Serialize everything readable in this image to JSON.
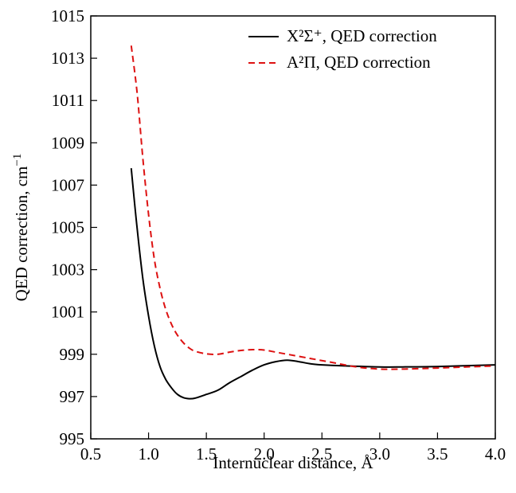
{
  "chart_data": {
    "type": "line",
    "title": "",
    "xlabel": "Internuclear distance, Å",
    "ylabel": "QED correction, cm",
    "ylabel_sup": "−1",
    "xlim": [
      0.5,
      4.0
    ],
    "ylim": [
      995,
      1015
    ],
    "x_ticks": [
      0.5,
      1.0,
      1.5,
      2.0,
      2.5,
      3.0,
      3.5,
      4.0
    ],
    "x_tick_labels": [
      "0.5",
      "1.0",
      "1.5",
      "2.0",
      "2.5",
      "3.0",
      "3.5",
      "4.0"
    ],
    "y_ticks": [
      995,
      997,
      999,
      1001,
      1003,
      1005,
      1007,
      1009,
      1011,
      1013,
      1015
    ],
    "y_tick_labels": [
      "995",
      "997",
      "999",
      "1001",
      "1003",
      "1005",
      "1007",
      "1009",
      "1011",
      "1013",
      "1015"
    ],
    "grid": false,
    "legend_position": "top-right",
    "series": [
      {
        "name": "X²Σ⁺, QED correction",
        "color": "#000000",
        "style": "solid",
        "points": [
          [
            0.85,
            1007.8
          ],
          [
            0.9,
            1005.0
          ],
          [
            0.95,
            1002.6
          ],
          [
            1.0,
            1000.8
          ],
          [
            1.05,
            999.4
          ],
          [
            1.1,
            998.4
          ],
          [
            1.15,
            997.8
          ],
          [
            1.2,
            997.4
          ],
          [
            1.25,
            997.1
          ],
          [
            1.3,
            996.95
          ],
          [
            1.35,
            996.9
          ],
          [
            1.4,
            996.92
          ],
          [
            1.5,
            997.1
          ],
          [
            1.6,
            997.3
          ],
          [
            1.7,
            997.65
          ],
          [
            1.8,
            997.95
          ],
          [
            1.9,
            998.25
          ],
          [
            2.0,
            998.5
          ],
          [
            2.1,
            998.65
          ],
          [
            2.2,
            998.72
          ],
          [
            2.3,
            998.65
          ],
          [
            2.4,
            998.55
          ],
          [
            2.5,
            998.5
          ],
          [
            2.7,
            998.45
          ],
          [
            3.0,
            998.4
          ],
          [
            3.2,
            998.4
          ],
          [
            3.5,
            998.42
          ],
          [
            4.0,
            998.5
          ]
        ]
      },
      {
        "name": "A²Π,  QED correction",
        "color": "#dd1111",
        "style": "dashed",
        "points": [
          [
            0.85,
            1013.6
          ],
          [
            0.9,
            1011.4
          ],
          [
            0.95,
            1008.3
          ],
          [
            1.0,
            1005.6
          ],
          [
            1.05,
            1003.5
          ],
          [
            1.1,
            1002.1
          ],
          [
            1.15,
            1001.1
          ],
          [
            1.2,
            1000.4
          ],
          [
            1.25,
            999.9
          ],
          [
            1.3,
            999.55
          ],
          [
            1.35,
            999.3
          ],
          [
            1.4,
            999.15
          ],
          [
            1.5,
            999.02
          ],
          [
            1.6,
            999.0
          ],
          [
            1.7,
            999.1
          ],
          [
            1.8,
            999.18
          ],
          [
            1.9,
            999.22
          ],
          [
            2.0,
            999.2
          ],
          [
            2.1,
            999.1
          ],
          [
            2.2,
            999.0
          ],
          [
            2.4,
            998.8
          ],
          [
            2.6,
            998.6
          ],
          [
            2.8,
            998.4
          ],
          [
            3.0,
            998.3
          ],
          [
            3.2,
            998.3
          ],
          [
            3.5,
            998.35
          ],
          [
            4.0,
            998.45
          ]
        ]
      }
    ]
  }
}
